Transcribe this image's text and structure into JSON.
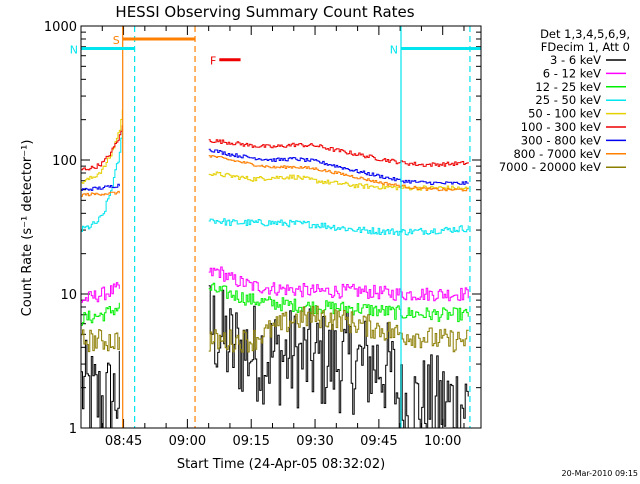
{
  "chart_data": {
    "type": "line",
    "title": "HESSI Observing Summary Count Rates",
    "xlabel": "Start Time (24-Apr-05 08:32:02)",
    "ylabel": "Count Rate (s⁻¹ detector⁻¹)",
    "yscale": "log",
    "ylim": [
      1,
      1000
    ],
    "xlim_minutes": [
      -25,
      69
    ],
    "x_ticks": [
      "08:45",
      "09:00",
      "09:15",
      "09:30",
      "09:45",
      "10:00"
    ],
    "y_ticks": [
      "1",
      "10",
      "100",
      "1000"
    ],
    "legend_header": [
      "Det 1,3,4,5,6,9,",
      "FDecim 1, Att 0"
    ],
    "legend_position": "right",
    "footer_timestamp": "20-Mar-2010 09:15",
    "flags": [
      {
        "label": "S",
        "color": "#ff7f00",
        "start": -15.2,
        "end": 1.8,
        "y": 800
      },
      {
        "label": "N",
        "color": "#00e5ee",
        "start": -25,
        "end": -12.4,
        "y": 680
      },
      {
        "label": "N",
        "color": "#00e5ee",
        "start": 50.2,
        "end": 69,
        "y": 680
      },
      {
        "label": "F",
        "color": "#ee0000",
        "start": 7.5,
        "end": 12.5,
        "y": 560
      }
    ],
    "vlines": [
      {
        "x": -15.2,
        "color": "#ff7f00",
        "style": "solid"
      },
      {
        "x": -12.4,
        "color": "#00e5ee",
        "style": "dashed"
      },
      {
        "x": 1.8,
        "color": "#ff7f00",
        "style": "dashed"
      },
      {
        "x": 50.2,
        "color": "#00e5ee",
        "style": "solid"
      },
      {
        "x": 66.4,
        "color": "#00e5ee",
        "style": "dashed"
      }
    ],
    "series": [
      {
        "name": "3 - 6 keV",
        "color": "#000000",
        "pre": [
          [
            -25,
            2
          ],
          [
            -20,
            1.5
          ],
          [
            -16,
            1.8
          ]
        ],
        "post": [
          [
            5,
            6
          ],
          [
            10,
            4
          ],
          [
            20,
            3.5
          ],
          [
            30,
            3.2
          ],
          [
            40,
            3
          ],
          [
            45,
            3
          ],
          [
            48,
            2.5
          ],
          [
            50,
            1.5
          ],
          [
            55,
            1.5
          ],
          [
            60,
            1.5
          ],
          [
            66,
            1.5
          ]
        ],
        "noise": 0.55,
        "spiky": true
      },
      {
        "name": "6 - 12 keV",
        "color": "#ff00ff",
        "pre": [
          [
            -25,
            9
          ],
          [
            -20,
            10
          ],
          [
            -16,
            11
          ]
        ],
        "post": [
          [
            5,
            14
          ],
          [
            7,
            15
          ],
          [
            10,
            13
          ],
          [
            15,
            11.5
          ],
          [
            20,
            11
          ],
          [
            30,
            10.5
          ],
          [
            40,
            10.5
          ],
          [
            50,
            10
          ],
          [
            60,
            10
          ],
          [
            66,
            10
          ]
        ],
        "noise": 0.12
      },
      {
        "name": "12 - 25 keV",
        "color": "#00ee00",
        "pre": [
          [
            -25,
            6.5
          ],
          [
            -20,
            7
          ],
          [
            -16,
            8
          ]
        ],
        "post": [
          [
            5,
            11
          ],
          [
            10,
            10
          ],
          [
            15,
            9
          ],
          [
            20,
            8.5
          ],
          [
            30,
            8
          ],
          [
            40,
            7.8
          ],
          [
            50,
            7.2
          ],
          [
            60,
            7
          ],
          [
            66,
            7
          ]
        ],
        "noise": 0.12
      },
      {
        "name": "25 - 50 keV",
        "color": "#00e5ee",
        "pre": [
          [
            -25,
            30
          ],
          [
            -22,
            33
          ],
          [
            -20,
            38
          ],
          [
            -18,
            60
          ],
          [
            -16,
            110
          ],
          [
            -15.3,
            180
          ]
        ],
        "post": [
          [
            5,
            36
          ],
          [
            10,
            34
          ],
          [
            20,
            34
          ],
          [
            30,
            33
          ],
          [
            40,
            30
          ],
          [
            50,
            29
          ],
          [
            60,
            30
          ],
          [
            66,
            31
          ]
        ],
        "noise": 0.06
      },
      {
        "name": "50 - 100 keV",
        "color": "#e5d000",
        "pre": [
          [
            -25,
            68
          ],
          [
            -22,
            75
          ],
          [
            -20,
            85
          ],
          [
            -18,
            110
          ],
          [
            -16,
            170
          ],
          [
            -15.3,
            230
          ]
        ],
        "post": [
          [
            5,
            80
          ],
          [
            10,
            76
          ],
          [
            15,
            72
          ],
          [
            20,
            74
          ],
          [
            25,
            75
          ],
          [
            30,
            70
          ],
          [
            35,
            67
          ],
          [
            40,
            64
          ],
          [
            50,
            62
          ],
          [
            60,
            62
          ],
          [
            66,
            61
          ]
        ],
        "noise": 0.04
      },
      {
        "name": "100 - 300 keV",
        "color": "#ee0000",
        "pre": [
          [
            -25,
            85
          ],
          [
            -22,
            88
          ],
          [
            -20,
            95
          ],
          [
            -18,
            115
          ],
          [
            -16,
            150
          ],
          [
            -15.3,
            180
          ]
        ],
        "post": [
          [
            5,
            140
          ],
          [
            10,
            135
          ],
          [
            15,
            128
          ],
          [
            20,
            125
          ],
          [
            25,
            130
          ],
          [
            30,
            128
          ],
          [
            35,
            118
          ],
          [
            40,
            110
          ],
          [
            45,
            102
          ],
          [
            50,
            96
          ],
          [
            55,
            92
          ],
          [
            60,
            93
          ],
          [
            66,
            95
          ]
        ],
        "noise": 0.035
      },
      {
        "name": "300 - 800 keV",
        "color": "#0000ee",
        "pre": [
          [
            -25,
            60
          ],
          [
            -20,
            62
          ],
          [
            -16,
            65
          ]
        ],
        "post": [
          [
            5,
            120
          ],
          [
            10,
            110
          ],
          [
            15,
            104
          ],
          [
            20,
            100
          ],
          [
            25,
            102
          ],
          [
            30,
            98
          ],
          [
            35,
            90
          ],
          [
            40,
            82
          ],
          [
            45,
            76
          ],
          [
            50,
            70
          ],
          [
            55,
            68
          ],
          [
            60,
            67
          ],
          [
            66,
            67
          ]
        ],
        "noise": 0.03
      },
      {
        "name": "800 - 7000 keV",
        "color": "#ff7f00",
        "pre": [
          [
            -25,
            55
          ],
          [
            -20,
            56
          ],
          [
            -16,
            57
          ]
        ],
        "post": [
          [
            5,
            108
          ],
          [
            10,
            100
          ],
          [
            15,
            93
          ],
          [
            20,
            88
          ],
          [
            25,
            89
          ],
          [
            30,
            86
          ],
          [
            35,
            80
          ],
          [
            40,
            74
          ],
          [
            45,
            68
          ],
          [
            50,
            64
          ],
          [
            55,
            61
          ],
          [
            60,
            60
          ],
          [
            66,
            60
          ]
        ],
        "noise": 0.025
      },
      {
        "name": "7000 - 20000 keV",
        "color": "#8b7d00",
        "pre": [
          [
            -25,
            4.5
          ],
          [
            -20,
            4.5
          ],
          [
            -16,
            4.5
          ]
        ],
        "post": [
          [
            5,
            4.5
          ],
          [
            10,
            4.5
          ],
          [
            15,
            4.5
          ],
          [
            20,
            5.5
          ],
          [
            25,
            6.5
          ],
          [
            30,
            6.8
          ],
          [
            35,
            6.5
          ],
          [
            40,
            6
          ],
          [
            45,
            5.5
          ],
          [
            50,
            5
          ],
          [
            55,
            4.8
          ],
          [
            60,
            4.5
          ],
          [
            66,
            4.5
          ]
        ],
        "noise": 0.2
      }
    ]
  }
}
